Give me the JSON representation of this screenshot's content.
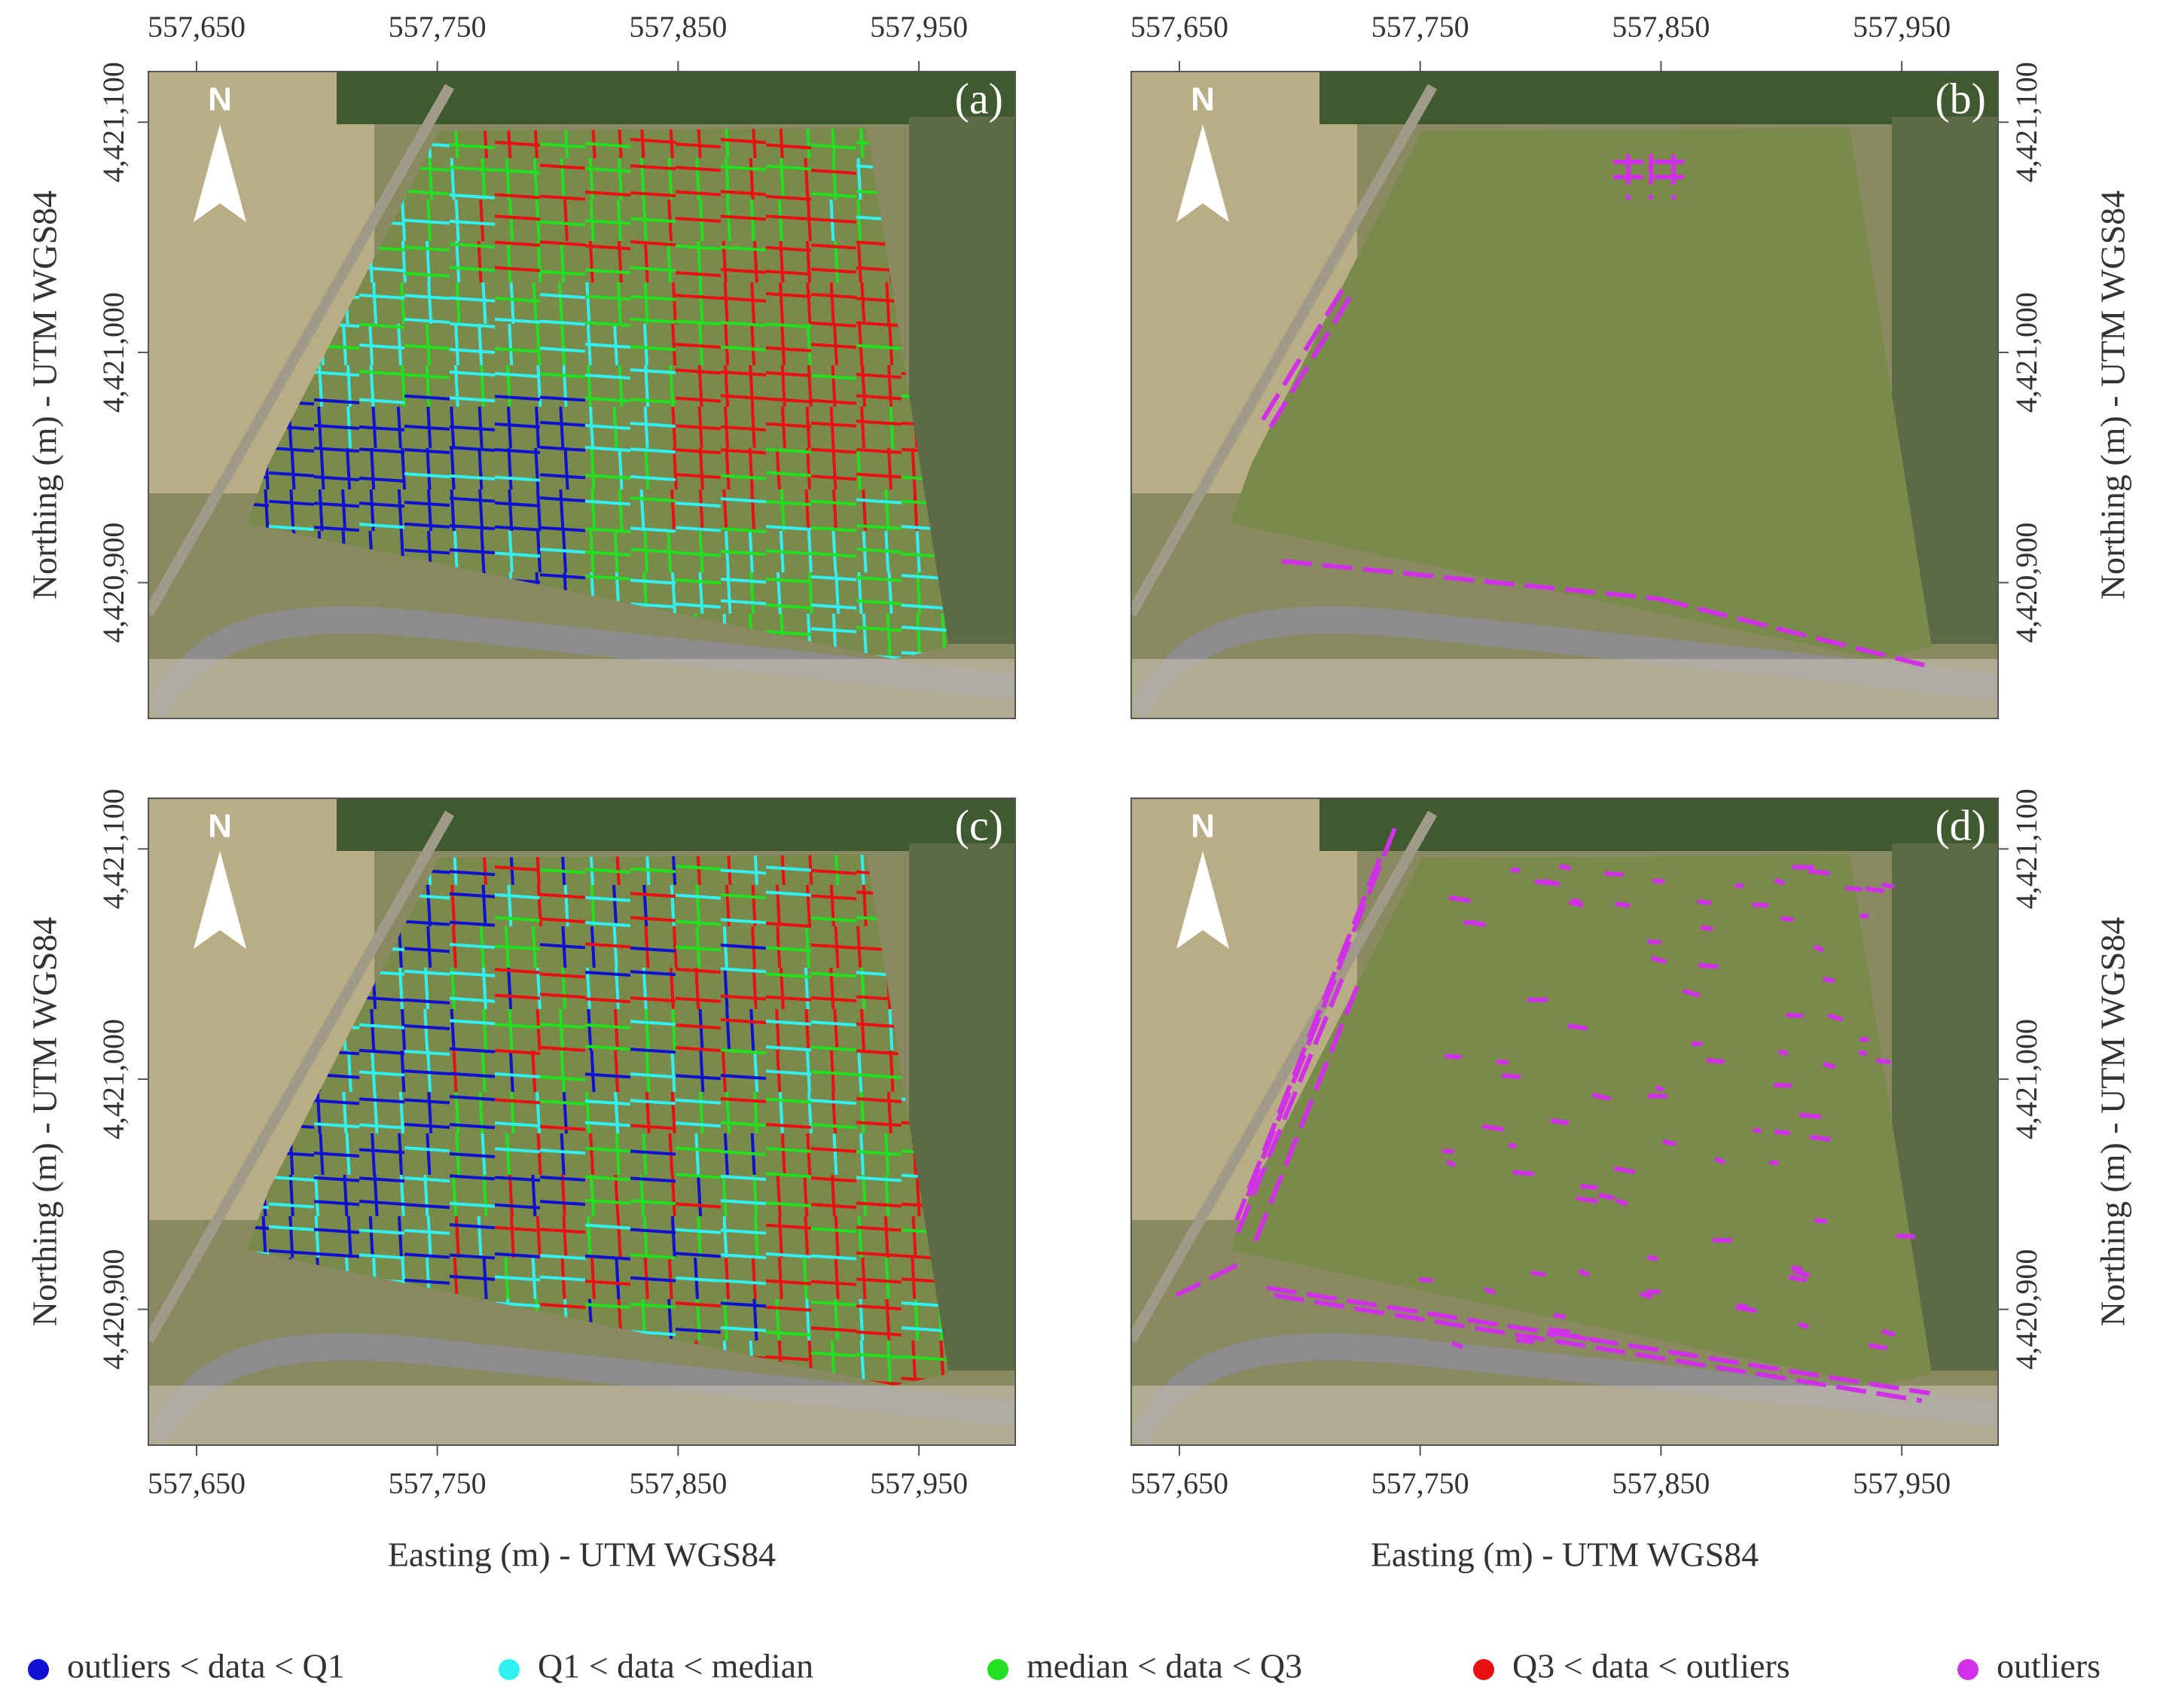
{
  "maps": [
    {
      "label": "(a)"
    },
    {
      "label": "(b)"
    },
    {
      "label": "(c)"
    },
    {
      "label": "(d)"
    }
  ],
  "north": "N",
  "x_label": "Easting (m) - UTM WGS84",
  "y_label": "Northing (m) - UTM WGS84",
  "xlim": [
    557630,
    557990
  ],
  "ylim": [
    4420841,
    4421122
  ],
  "xticks": [
    {
      "value": 557650,
      "label": "557,650"
    },
    {
      "value": 557750,
      "label": "557,750"
    },
    {
      "value": 557850,
      "label": "557,850"
    },
    {
      "value": 557950,
      "label": "557,950"
    }
  ],
  "yticks": [
    {
      "value": 4420900,
      "label": "4,420,900"
    },
    {
      "value": 4421000,
      "label": "4,421,000"
    },
    {
      "value": 4421100,
      "label": "4,421,100"
    }
  ],
  "legend": [
    {
      "name": "outliers < data < Q1",
      "color": "#1010d0"
    },
    {
      "name": "Q1 < data < median",
      "color": "#30f0f0"
    },
    {
      "name": "median < data < Q3",
      "color": "#20e020"
    },
    {
      "name": "Q3 < data < outliers",
      "color": "#e81010"
    },
    {
      "name": "outliers",
      "color": "#d030e8"
    }
  ]
}
